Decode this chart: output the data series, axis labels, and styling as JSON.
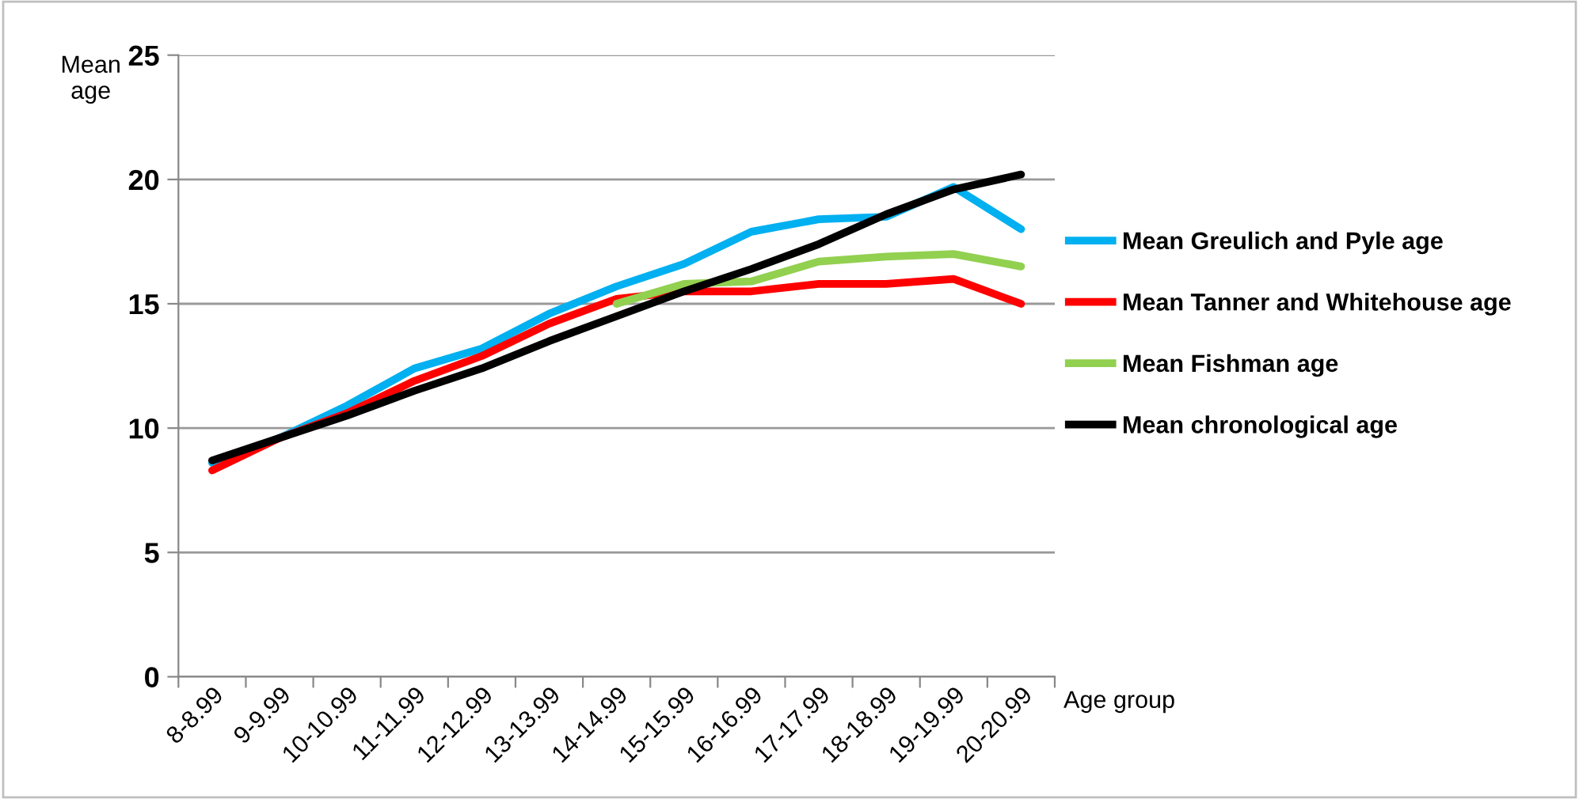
{
  "chart_data": {
    "type": "line",
    "ylabel": "Mean\nage",
    "xlabel": "Age group",
    "categories": [
      "8-8.99",
      "9-9.99",
      "10-10.99",
      "11-11.99",
      "12-12.99",
      "13-13.99",
      "14-14.99",
      "15-15.99",
      "16-16.99",
      "17-17.99",
      "18-18.99",
      "19-19.99",
      "20-20.99"
    ],
    "series": [
      {
        "name": "Mean Greulich and Pyle age",
        "color": "#00b0f0",
        "values": [
          8.6,
          9.6,
          10.9,
          12.4,
          13.2,
          14.6,
          15.7,
          16.6,
          17.9,
          18.4,
          18.5,
          19.7,
          18.0
        ]
      },
      {
        "name": "Mean Tanner and Whitehouse age",
        "color": "#ff0000",
        "values": [
          8.3,
          9.6,
          10.6,
          11.9,
          12.9,
          14.2,
          15.2,
          15.5,
          15.5,
          15.8,
          15.8,
          16.0,
          15.0
        ]
      },
      {
        "name": "Mean Fishman age",
        "color": "#92d050",
        "values": [
          null,
          null,
          null,
          null,
          null,
          null,
          15.0,
          15.8,
          15.9,
          16.7,
          16.9,
          17.0,
          16.5
        ]
      },
      {
        "name": "Mean chronological age",
        "color": "#000000",
        "values": [
          8.7,
          9.6,
          10.5,
          11.5,
          12.4,
          13.5,
          14.5,
          15.5,
          16.4,
          17.4,
          18.6,
          19.6,
          20.2
        ]
      }
    ],
    "ylim": [
      0,
      25
    ],
    "yticks": [
      0,
      5,
      10,
      15,
      20,
      25
    ],
    "grid": "y",
    "legend": "right",
    "marker": "none",
    "line_style": "solid"
  }
}
